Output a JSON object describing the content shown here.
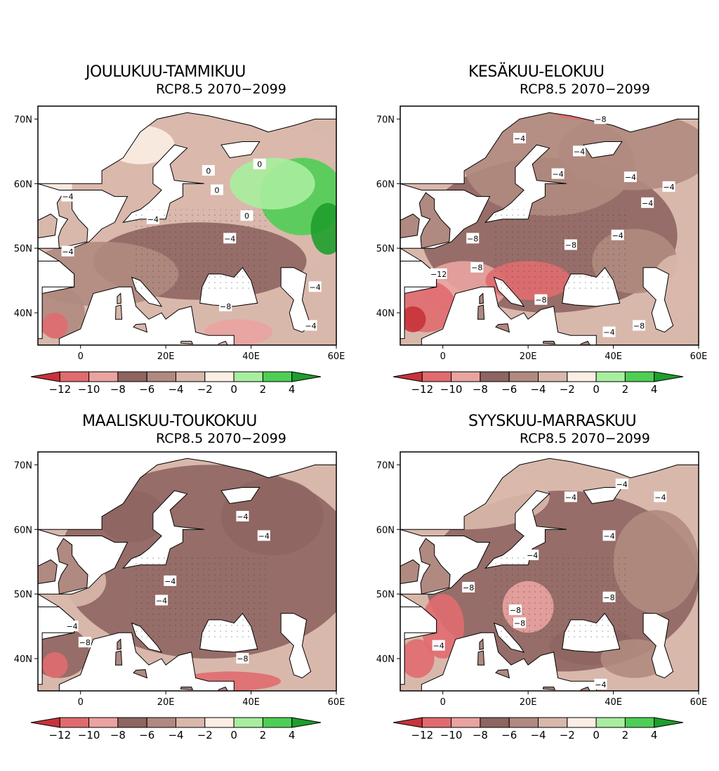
{
  "figure": {
    "colorbar": {
      "labels": [
        "−12",
        "−10",
        "−8",
        "−6",
        "−4",
        "−2",
        "0",
        "2",
        "4"
      ],
      "colors": [
        "#c8333a",
        "#e06b6f",
        "#e9a3a0",
        "#8e6560",
        "#b08980",
        "#d9b8ac",
        "#fbeee4",
        "#a8ee9f",
        "#4fce55",
        "#1e9e2c"
      ]
    },
    "axes": {
      "lat_ticks": [
        "70N",
        "60N",
        "50N",
        "40N"
      ],
      "lon_ticks": [
        "0",
        "20E",
        "40E",
        "60E"
      ]
    }
  },
  "panels": [
    {
      "title": "JOULUKUU-TAMMIKUU",
      "subtitle": "RCP8.5  2070−2099",
      "contour_labels": [
        "−4",
        "−4",
        "−4",
        "0",
        "0",
        "0",
        "0",
        "−4",
        "−4",
        "−8",
        "−4"
      ]
    },
    {
      "title": "KESÄKUU-ELOKUU",
      "subtitle": "RCP8.5  2070−2099",
      "contour_labels": [
        "−4",
        "−8",
        "−4",
        "−4",
        "−4",
        "−4",
        "−4",
        "−8",
        "−8",
        "−8",
        "−12",
        "−4",
        "−8",
        "−4",
        "−8"
      ]
    },
    {
      "title": "MAALISKUU-TOUKOKUU",
      "subtitle": "RCP8.5  2070−2099",
      "contour_labels": [
        "−4",
        "−4",
        "−4",
        "−4",
        "−4",
        "−8",
        "−8"
      ]
    },
    {
      "title": "SYYSKUU-MARRASKUU",
      "subtitle": "RCP8.5  2070−2099",
      "contour_labels": [
        "−4",
        "−4",
        "−4",
        "−4",
        "−4",
        "−8",
        "−8",
        "−8",
        "−8",
        "−4",
        "−4"
      ]
    }
  ]
}
